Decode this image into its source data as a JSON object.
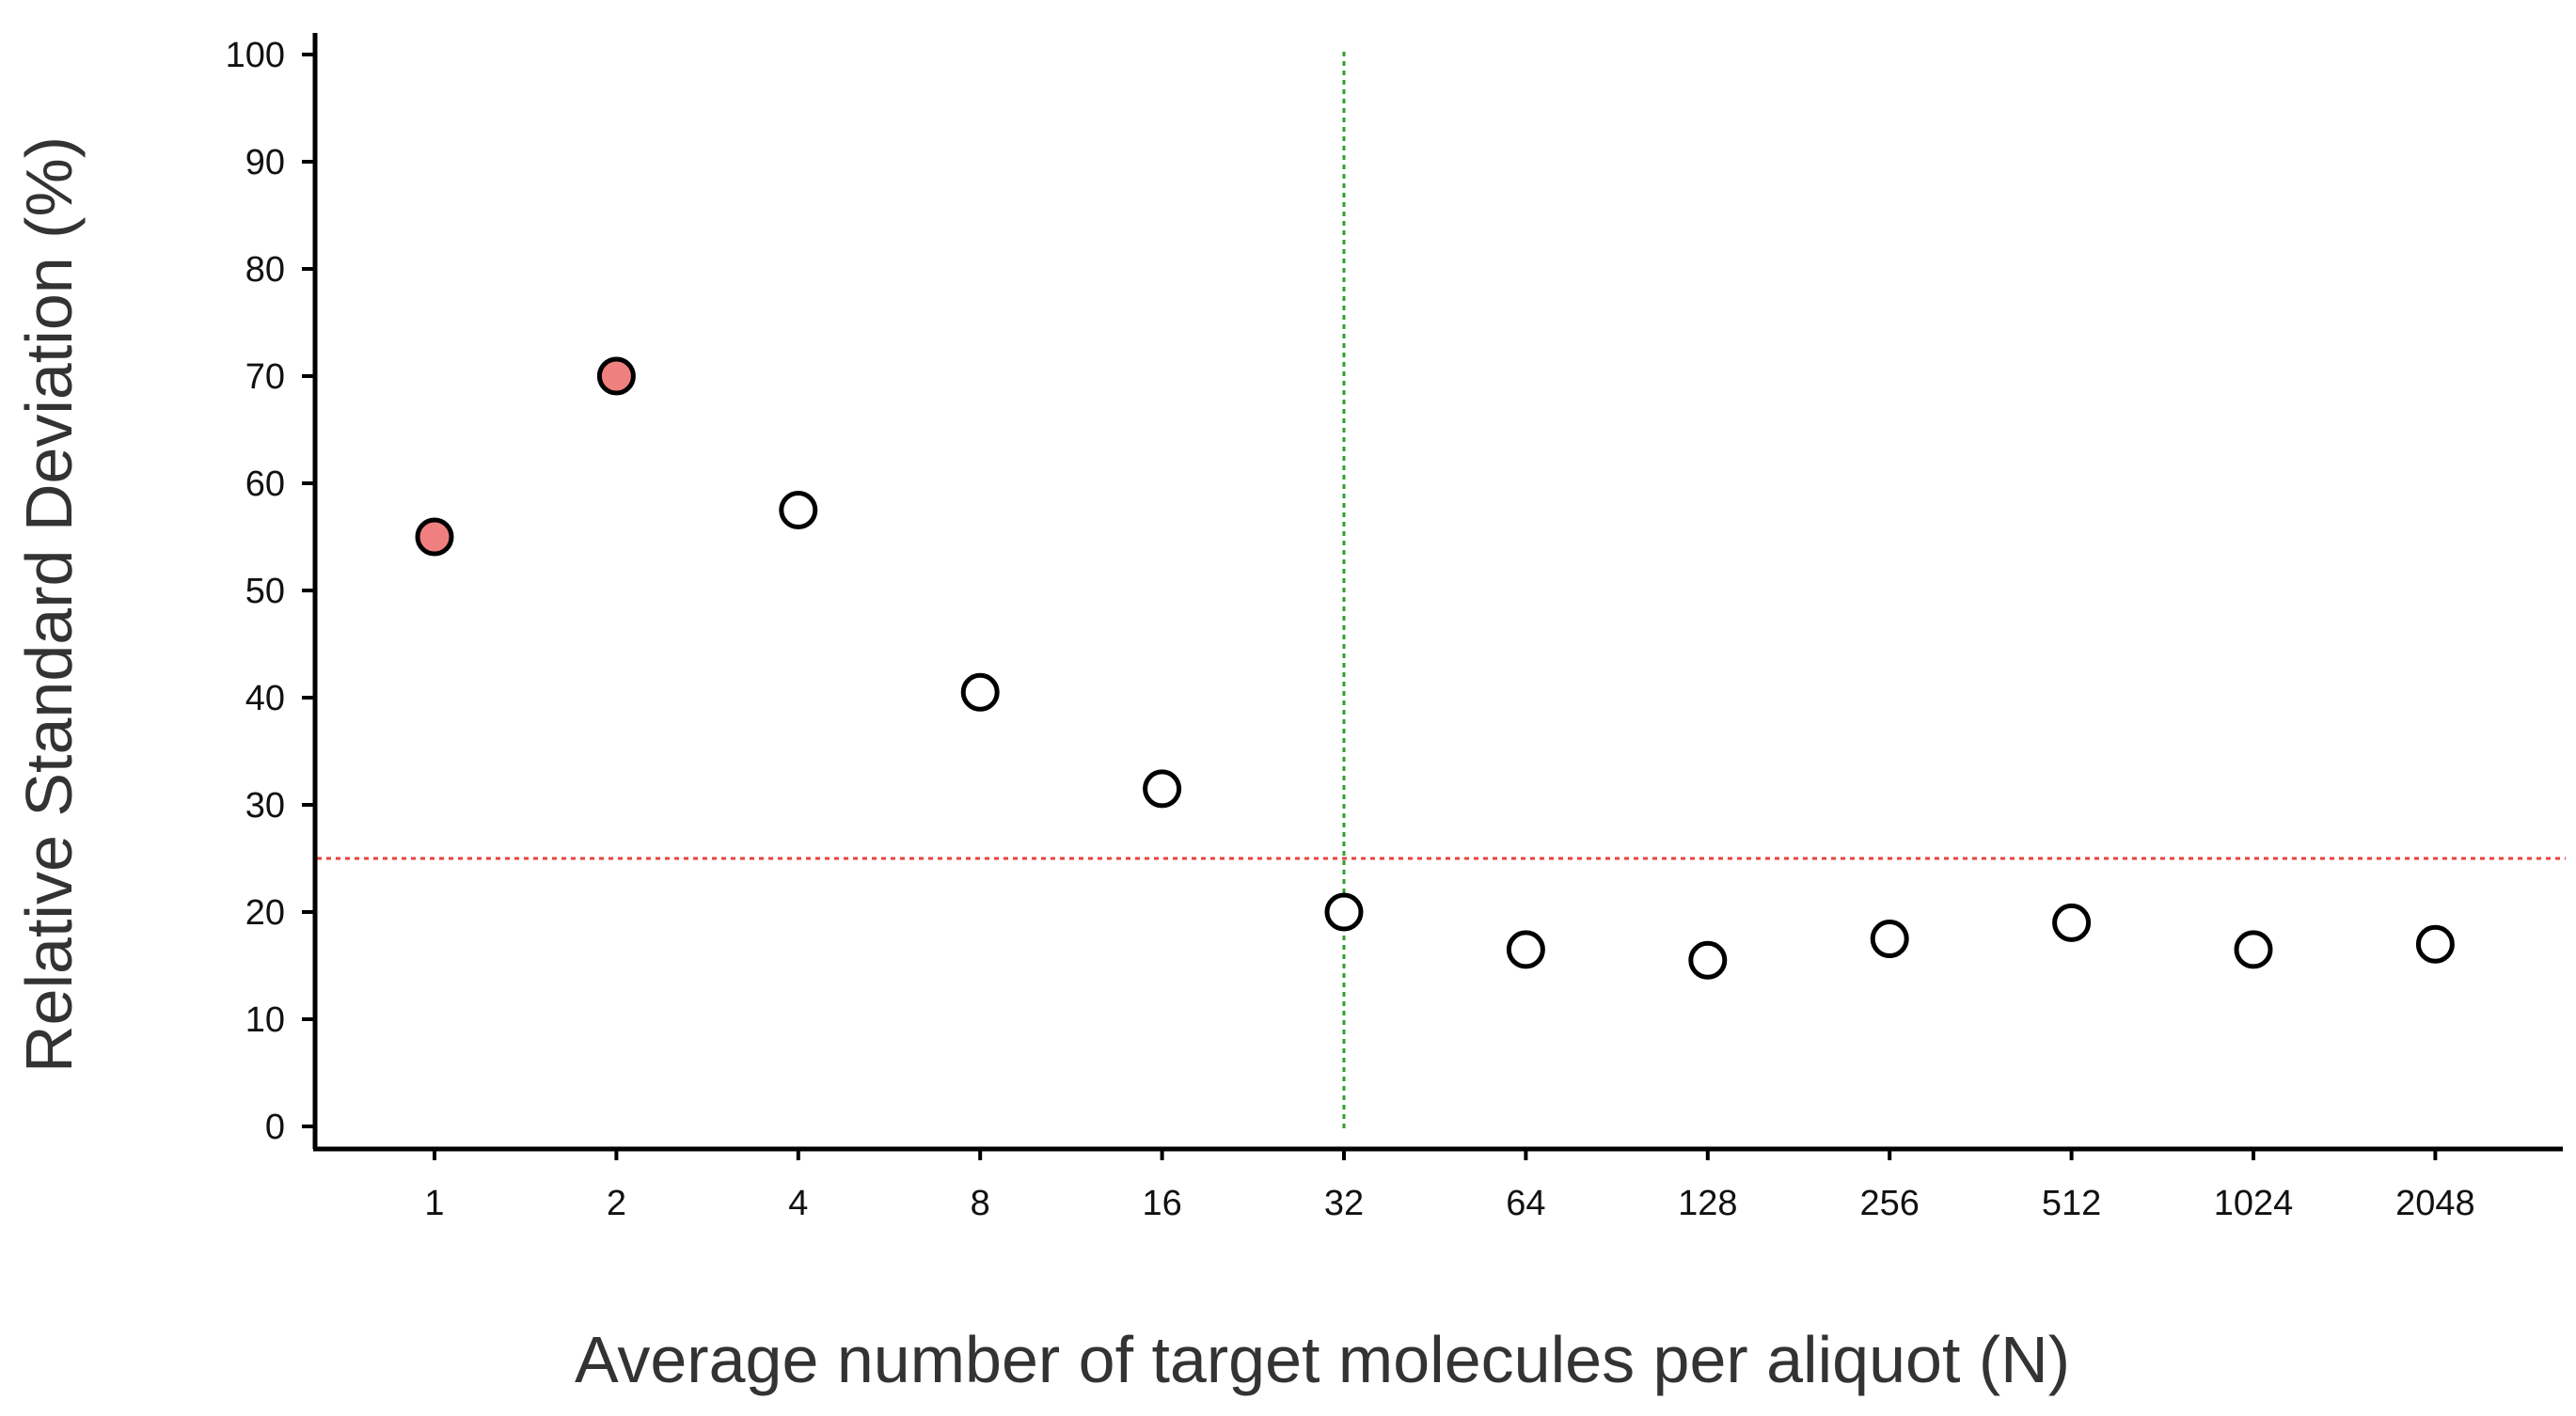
{
  "chart_data": {
    "type": "scatter",
    "title": "",
    "xlabel": "Average number of target molecules per aliquot (N)",
    "ylabel": "Relative Standard Deviation (%)",
    "x_scale": "log2",
    "x": [
      1,
      2,
      4,
      8,
      16,
      32,
      64,
      128,
      256,
      512,
      1024,
      2048
    ],
    "x_tick_labels": [
      "1",
      "2",
      "4",
      "8",
      "16",
      "32",
      "64",
      "128",
      "256",
      "512",
      "1024",
      "2048"
    ],
    "y_ticks": [
      0,
      10,
      20,
      30,
      40,
      50,
      60,
      70,
      80,
      90,
      100
    ],
    "ylim": [
      0,
      100
    ],
    "series": [
      {
        "values": [
          55,
          70,
          57.5,
          40.5,
          31.5,
          20,
          16.5,
          15.5,
          17.5,
          19,
          16.5,
          17
        ],
        "fill_colors": [
          "#f08080",
          "#f08080",
          "#ffffff",
          "#ffffff",
          "#ffffff",
          "#ffffff",
          "#ffffff",
          "#ffffff",
          "#ffffff",
          "#ffffff",
          "#ffffff",
          "#ffffff"
        ],
        "edge_color": "#000000"
      }
    ],
    "reference_lines": [
      {
        "orientation": "horizontal",
        "y": 25,
        "color": "#e8413b",
        "style": "dotted"
      },
      {
        "orientation": "vertical",
        "x": 32,
        "color": "#2ca02c",
        "style": "dotted"
      }
    ],
    "grid": false,
    "legend": "none"
  }
}
